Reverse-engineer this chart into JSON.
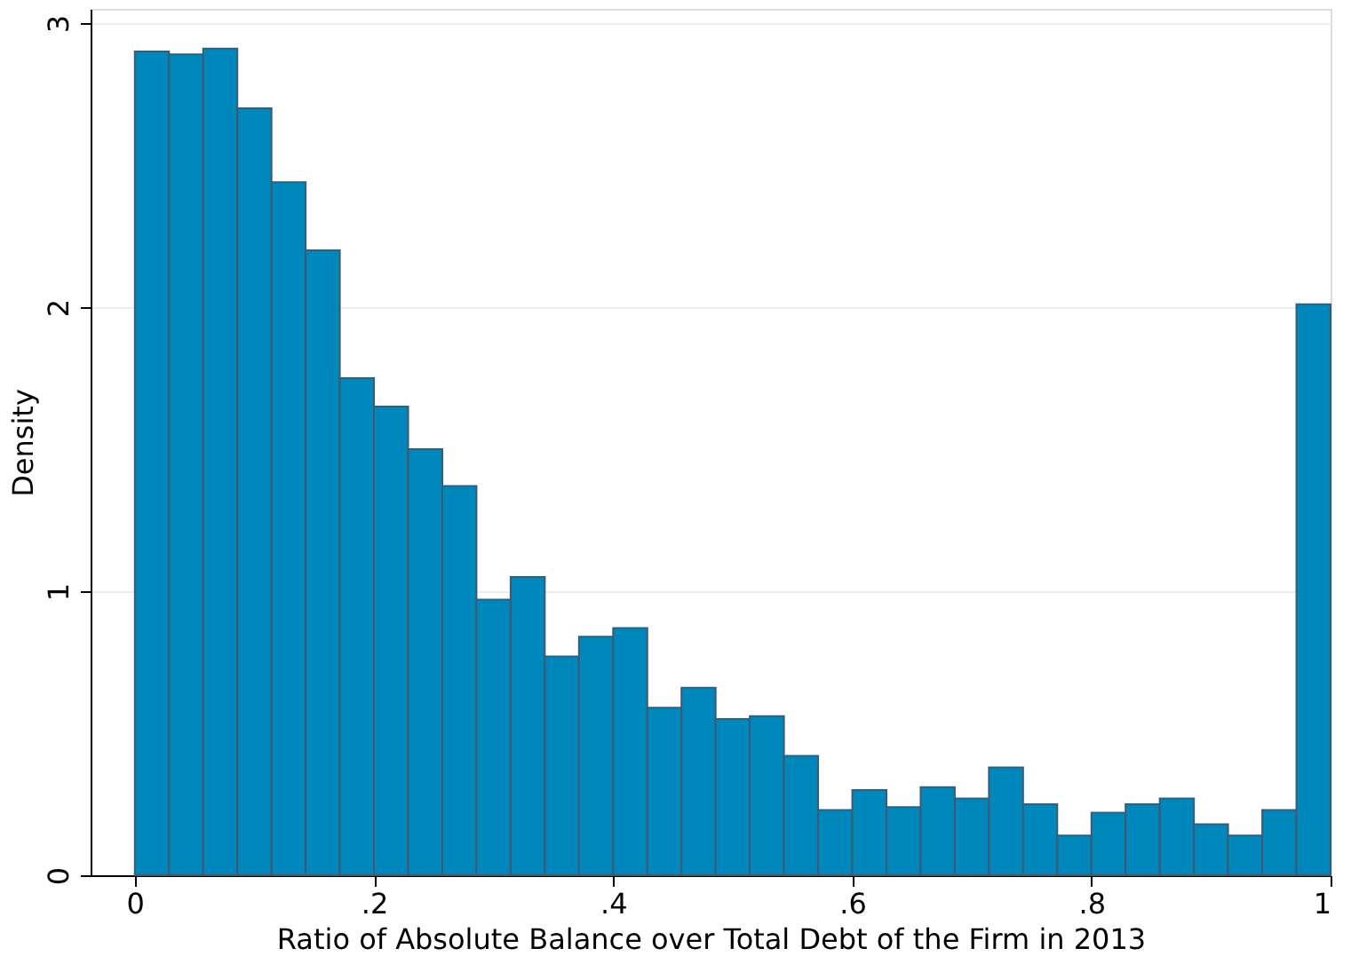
{
  "chart_data": {
    "type": "histogram",
    "xlabel": "Ratio of Absolute Balance over Total Debt of the Firm in 2013",
    "ylabel": "Density",
    "bins": [
      0,
      0.028571,
      0.057143,
      0.085714,
      0.114286,
      0.142857,
      0.171429,
      0.2,
      0.228571,
      0.257143,
      0.285714,
      0.314286,
      0.342857,
      0.371429,
      0.4,
      0.428571,
      0.457143,
      0.485714,
      0.514286,
      0.542857,
      0.571429,
      0.6,
      0.628571,
      0.657143,
      0.685714,
      0.714286,
      0.742857,
      0.771429,
      0.8,
      0.828571,
      0.857143,
      0.885714,
      0.914286,
      0.942857,
      0.971429,
      1
    ],
    "values": [
      2.9,
      2.89,
      2.91,
      2.7,
      2.44,
      2.2,
      1.75,
      1.65,
      1.5,
      1.37,
      0.97,
      1.05,
      0.77,
      0.84,
      0.87,
      0.59,
      0.66,
      0.55,
      0.56,
      0.42,
      0.23,
      0.3,
      0.24,
      0.31,
      0.27,
      0.38,
      0.25,
      0.14,
      0.22,
      0.25,
      0.27,
      0.18,
      0.14,
      0.23,
      2.01
    ],
    "color": "#0088bc",
    "xlim": [
      -0.037,
      1
    ],
    "ylim": [
      0,
      3.05
    ],
    "xticks": [
      0,
      {
        "value": 0.2,
        "label": ".2"
      },
      {
        "value": 0.4,
        "label": ".4"
      },
      {
        "value": 0.6,
        "label": ".6"
      },
      {
        "value": 0.8,
        "label": ".8"
      },
      1
    ],
    "yticks": [
      0,
      1,
      2,
      3
    ],
    "grid": "y"
  }
}
